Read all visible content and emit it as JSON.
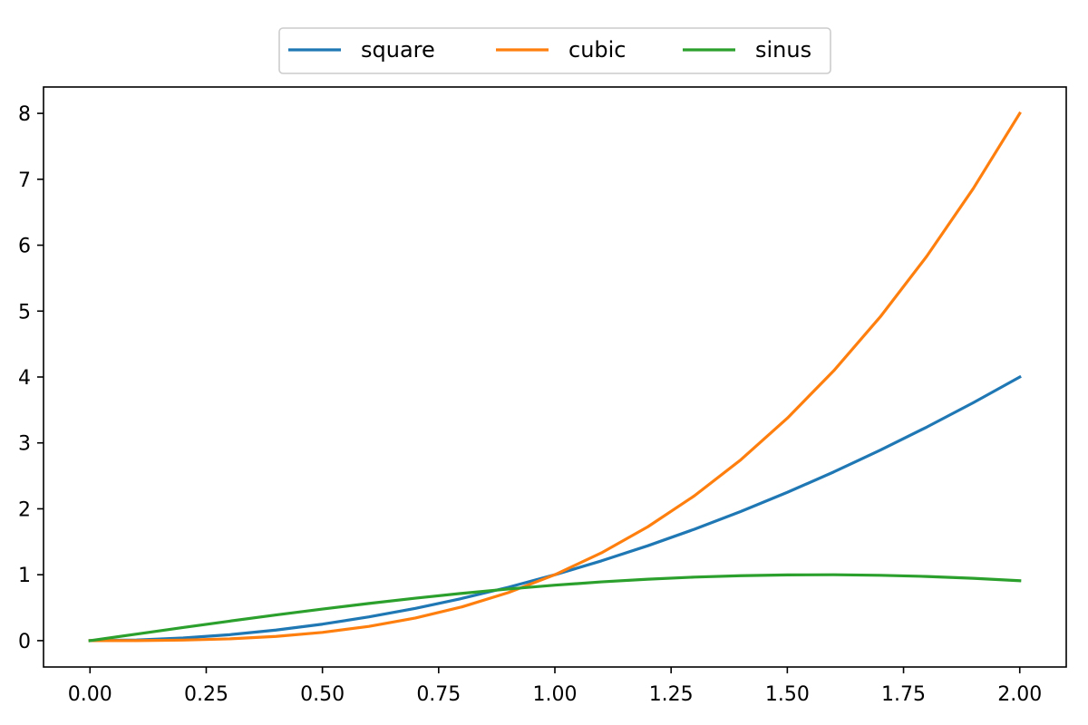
{
  "chart_data": {
    "type": "line",
    "title": "",
    "xlabel": "",
    "ylabel": "",
    "xlim": [
      -0.1,
      2.1
    ],
    "ylim": [
      -0.4,
      8.4
    ],
    "grid": false,
    "legend_position": "top-center",
    "x_ticks": [
      "0.00",
      "0.25",
      "0.50",
      "0.75",
      "1.00",
      "1.25",
      "1.50",
      "1.75",
      "2.00"
    ],
    "y_ticks": [
      "0",
      "1",
      "2",
      "3",
      "4",
      "5",
      "6",
      "7",
      "8"
    ],
    "x": [
      0.0,
      0.1,
      0.2,
      0.3,
      0.4,
      0.5,
      0.6,
      0.7,
      0.8,
      0.9,
      1.0,
      1.1,
      1.2,
      1.3,
      1.4,
      1.5,
      1.6,
      1.7,
      1.8,
      1.9,
      2.0
    ],
    "series": [
      {
        "name": "square",
        "color": "#1f77b4",
        "values": [
          0.0,
          0.01,
          0.04,
          0.09,
          0.16,
          0.25,
          0.36,
          0.49,
          0.64,
          0.81,
          1.0,
          1.21,
          1.44,
          1.69,
          1.96,
          2.25,
          2.56,
          2.89,
          3.24,
          3.61,
          4.0
        ]
      },
      {
        "name": "cubic",
        "color": "#ff7f0e",
        "values": [
          0.0,
          0.001,
          0.008,
          0.027,
          0.064,
          0.125,
          0.216,
          0.343,
          0.512,
          0.729,
          1.0,
          1.331,
          1.728,
          2.197,
          2.744,
          3.375,
          4.096,
          4.913,
          5.832,
          6.859,
          8.0
        ]
      },
      {
        "name": "sinus",
        "color": "#2ca02c",
        "values": [
          0.0,
          0.0998,
          0.1987,
          0.2955,
          0.3894,
          0.4794,
          0.5646,
          0.6442,
          0.7174,
          0.7833,
          0.8415,
          0.8912,
          0.932,
          0.9636,
          0.9854,
          0.9975,
          0.9996,
          0.9917,
          0.9738,
          0.9463,
          0.9093
        ]
      }
    ]
  }
}
